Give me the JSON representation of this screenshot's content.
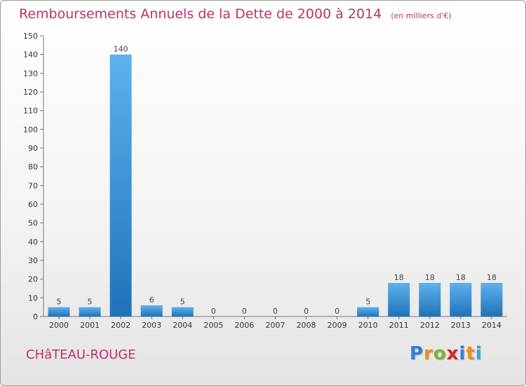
{
  "title": "Remboursements Annuels de la Dette de 2000 à 2014",
  "unit": "(en milliers d'€)",
  "commune": "CHâTEAU-ROUGE",
  "logo": {
    "letters": [
      "P",
      "r",
      "o",
      "x",
      "i",
      "t",
      "i"
    ],
    "colors": [
      "#2f7fd6",
      "#f28a1c",
      "#79b52a",
      "#d8232a",
      "#2f7fd6",
      "#f28a1c",
      "#2fa7d8"
    ]
  },
  "chart_data": {
    "type": "bar",
    "categories": [
      "2000",
      "2001",
      "2002",
      "2003",
      "2004",
      "2005",
      "2006",
      "2007",
      "2008",
      "2009",
      "2010",
      "2011",
      "2012",
      "2013",
      "2014"
    ],
    "values": [
      5,
      5,
      140,
      6,
      5,
      0,
      0,
      0,
      0,
      0,
      5,
      18,
      18,
      18,
      18
    ],
    "ylim": [
      0,
      150
    ],
    "yticks": [
      0,
      10,
      20,
      30,
      40,
      50,
      60,
      70,
      80,
      90,
      100,
      110,
      120,
      130,
      140,
      150
    ],
    "grid": false,
    "bar_color": "#3a95dc"
  }
}
